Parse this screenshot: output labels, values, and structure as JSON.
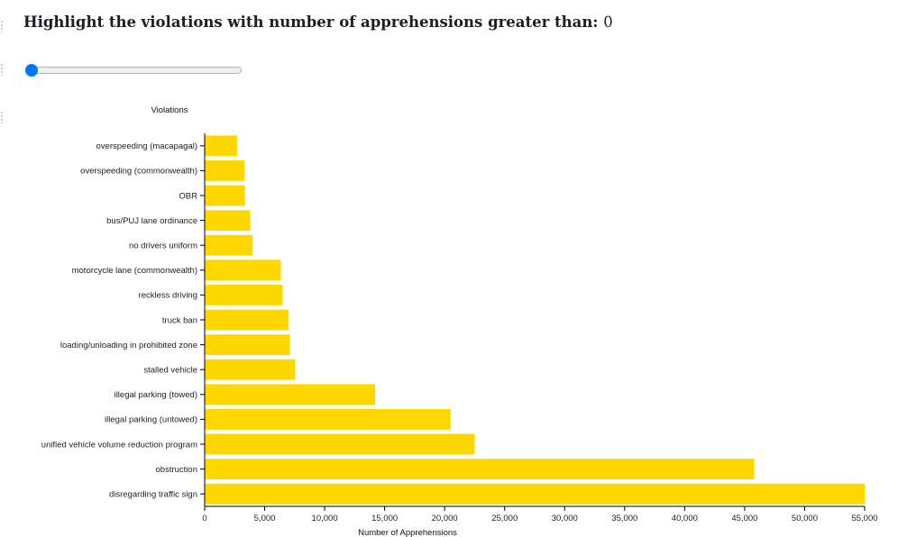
{
  "header": {
    "label": "Highlight the violations with number of apprehensions greater than:",
    "value": "0"
  },
  "slider": {
    "min": 0,
    "max": 55000,
    "value": 0,
    "accent_color": "#0075ff"
  },
  "chart_data": {
    "type": "bar",
    "orientation": "horizontal",
    "bar_color": "#ffd700",
    "title": "",
    "ylabel": "Violations",
    "xlabel": "Number of Apprehensions",
    "xlim": [
      0,
      55000
    ],
    "xticks": [
      0,
      5000,
      10000,
      15000,
      20000,
      25000,
      30000,
      35000,
      40000,
      45000,
      50000,
      55000
    ],
    "xtick_labels": [
      "0",
      "5,000",
      "10,000",
      "15,000",
      "20,000",
      "25,000",
      "30,000",
      "35,000",
      "40,000",
      "45,000",
      "50,000",
      "55,000"
    ],
    "grid": false,
    "legend": "none",
    "categories": [
      "overspeeding (macapagal)",
      "overspeeding (commonwealth)",
      "OBR",
      "bus/PUJ lane ordinance",
      "no drivers uniform",
      "motorcycle lane (commonwealth)",
      "reckless driving",
      "truck ban",
      "loading/unloading in prohibited zone",
      "stalled vehicle",
      "illegal parking (towed)",
      "illegal parking (untowed)",
      "unified vehicle volume reduction program",
      "obstruction",
      "disregarding traffic sign"
    ],
    "values": [
      2700,
      3300,
      3350,
      3800,
      4000,
      6350,
      6500,
      7000,
      7100,
      7550,
      14200,
      20500,
      22500,
      45800,
      55000
    ]
  }
}
